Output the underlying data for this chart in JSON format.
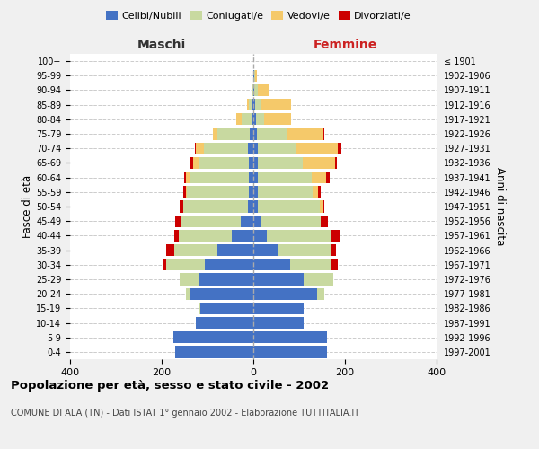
{
  "age_groups": [
    "0-4",
    "5-9",
    "10-14",
    "15-19",
    "20-24",
    "25-29",
    "30-34",
    "35-39",
    "40-44",
    "45-49",
    "50-54",
    "55-59",
    "60-64",
    "65-69",
    "70-74",
    "75-79",
    "80-84",
    "85-89",
    "90-94",
    "95-99",
    "100+"
  ],
  "birth_years": [
    "1997-2001",
    "1992-1996",
    "1987-1991",
    "1982-1986",
    "1977-1981",
    "1972-1976",
    "1967-1971",
    "1962-1966",
    "1957-1961",
    "1952-1956",
    "1947-1951",
    "1942-1946",
    "1937-1941",
    "1932-1936",
    "1927-1931",
    "1922-1926",
    "1917-1921",
    "1912-1916",
    "1907-1911",
    "1902-1906",
    "≤ 1901"
  ],
  "maschi": {
    "celibi": [
      170,
      175,
      125,
      115,
      140,
      120,
      105,
      78,
      48,
      28,
      12,
      10,
      10,
      10,
      12,
      8,
      3,
      2,
      0,
      0,
      0
    ],
    "coniugati": [
      0,
      0,
      0,
      2,
      8,
      40,
      85,
      95,
      115,
      130,
      140,
      135,
      130,
      110,
      95,
      70,
      22,
      8,
      2,
      0,
      0
    ],
    "vedovi": [
      0,
      0,
      0,
      0,
      0,
      0,
      0,
      0,
      0,
      0,
      0,
      2,
      8,
      12,
      18,
      10,
      12,
      4,
      0,
      0,
      0
    ],
    "divorziati": [
      0,
      0,
      0,
      0,
      0,
      0,
      8,
      18,
      10,
      12,
      8,
      5,
      3,
      5,
      2,
      0,
      0,
      0,
      0,
      0,
      0
    ]
  },
  "femmine": {
    "nubili": [
      160,
      160,
      110,
      110,
      140,
      110,
      80,
      55,
      30,
      18,
      10,
      10,
      10,
      10,
      10,
      8,
      5,
      3,
      2,
      1,
      0
    ],
    "coniugate": [
      0,
      0,
      0,
      0,
      15,
      65,
      90,
      115,
      140,
      130,
      135,
      120,
      118,
      98,
      85,
      65,
      18,
      15,
      8,
      2,
      0
    ],
    "vedove": [
      0,
      0,
      0,
      0,
      0,
      0,
      0,
      0,
      0,
      0,
      5,
      12,
      30,
      70,
      90,
      80,
      60,
      65,
      25,
      5,
      0
    ],
    "divorziate": [
      0,
      0,
      0,
      0,
      0,
      0,
      15,
      10,
      20,
      15,
      5,
      5,
      8,
      5,
      8,
      2,
      0,
      0,
      0,
      0,
      0
    ]
  },
  "colors": {
    "celibi_nubili": "#4472C4",
    "coniugati": "#C8D9A0",
    "vedovi": "#F5C96A",
    "divorziati": "#CC0000"
  },
  "title": "Popolazione per età, sesso e stato civile - 2002",
  "subtitle": "COMUNE DI ALA (TN) - Dati ISTAT 1° gennaio 2002 - Elaborazione TUTTITALIA.IT",
  "xlabel_left": "Maschi",
  "xlabel_right": "Femmine",
  "ylabel_left": "Fasce di età",
  "ylabel_right": "Anni di nascita",
  "xlim": 400,
  "background_color": "#f0f0f0",
  "plot_background": "#ffffff"
}
